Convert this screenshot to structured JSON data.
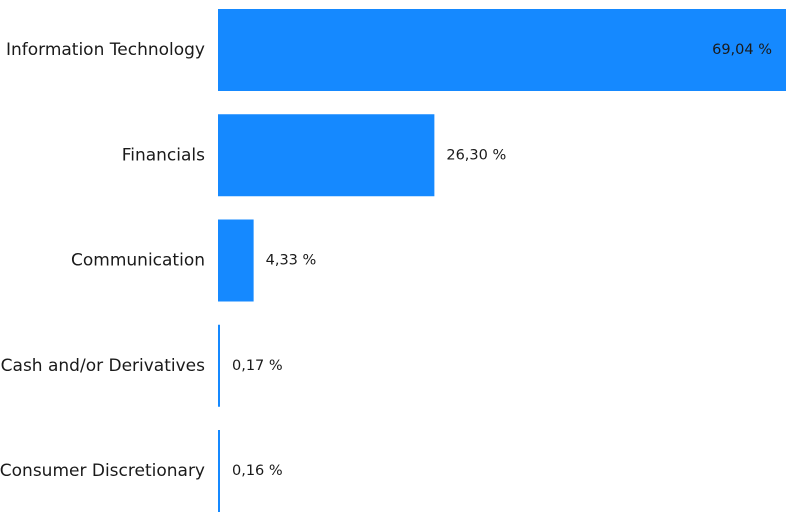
{
  "chart_data": {
    "type": "bar",
    "orientation": "horizontal",
    "categories": [
      "Information Technology",
      "Financials",
      "Communication",
      "Cash and/or Derivatives",
      "Consumer Discretionary"
    ],
    "values": [
      69.04,
      26.3,
      4.33,
      0.17,
      0.16
    ],
    "value_labels": [
      "69,04 %",
      "26,30 %",
      "4,33 %",
      "0,17 %",
      "0,16 %"
    ],
    "unit": "%",
    "xlim": [
      0,
      69.04
    ],
    "title": "",
    "xlabel": "",
    "ylabel": "",
    "grid": false,
    "legend": "none",
    "colors": {
      "bar": "#1589FF",
      "text": "#1a1a1a",
      "background": "#ffffff"
    }
  }
}
